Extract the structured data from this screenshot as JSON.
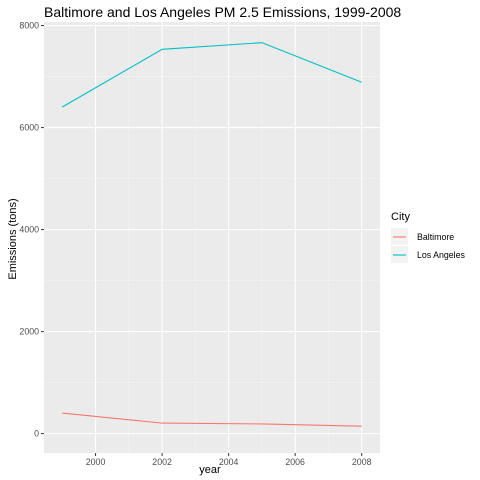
{
  "chart_data": {
    "type": "line",
    "title": "Baltimore and Los Angeles PM 2.5 Emissions, 1999-2008",
    "xlabel": "year",
    "ylabel": "Emissions (tons)",
    "x": [
      1999,
      2002,
      2005,
      2008
    ],
    "xlim": [
      1998.45,
      2008.55
    ],
    "ylim": [
      -380,
      8070
    ],
    "x_ticks": [
      2000,
      2002,
      2004,
      2006,
      2008
    ],
    "y_ticks": [
      0,
      2000,
      4000,
      6000,
      8000
    ],
    "grid": true,
    "legend_title": "City",
    "legend_position": "right",
    "series": [
      {
        "name": "Baltimore",
        "color": "#F8766D",
        "values": [
          403,
          206,
          190,
          145
        ]
      },
      {
        "name": "Los Angeles",
        "color": "#00BFC4",
        "values": [
          6404,
          7535,
          7665,
          6888
        ]
      }
    ]
  },
  "style": {
    "panel_background": "#EBEBEB",
    "grid_major_color": "#FFFFFF",
    "grid_minor_color": "#F5F5F5"
  }
}
